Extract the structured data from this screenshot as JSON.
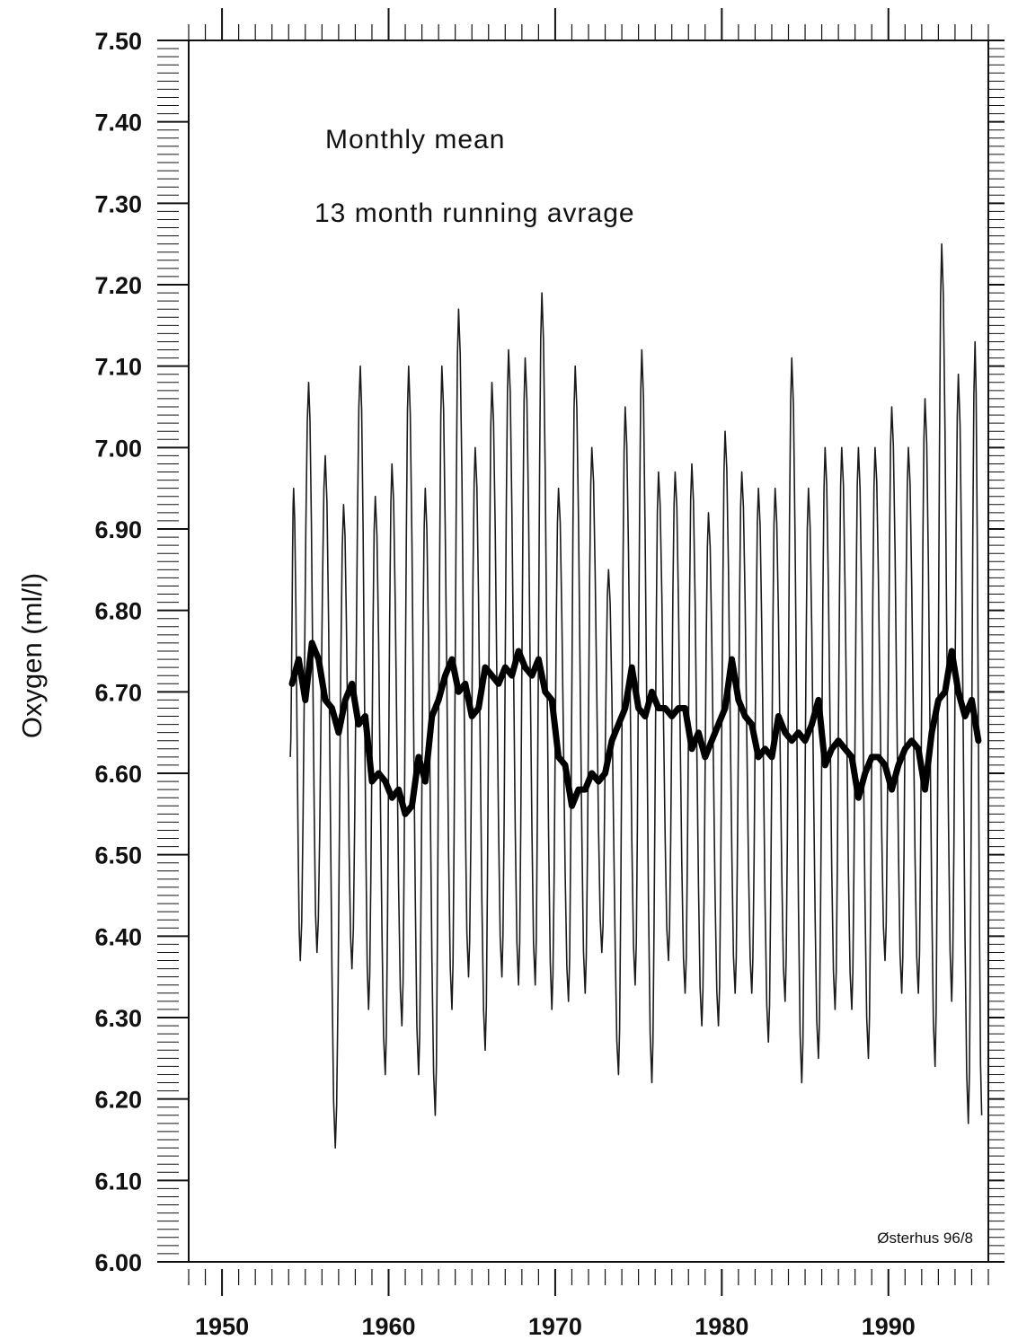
{
  "chart_data": {
    "type": "line",
    "title": "",
    "xlabel": "",
    "ylabel": "Oxygen (ml/l)",
    "xlim": [
      1948,
      1996
    ],
    "ylim": [
      6.0,
      7.5
    ],
    "x_ticks": [
      1950,
      1960,
      1970,
      1980,
      1990
    ],
    "x_tick_labels": [
      "1950",
      "1960",
      "1970",
      "1980",
      "1990"
    ],
    "y_ticks": [
      6.0,
      6.1,
      6.2,
      6.3,
      6.4,
      6.5,
      6.6,
      6.7,
      6.8,
      6.9,
      7.0,
      7.1,
      7.2,
      7.3,
      7.4,
      7.5
    ],
    "y_tick_labels": [
      "6.00",
      "6.10",
      "6.20",
      "6.30",
      "6.40",
      "6.50",
      "6.60",
      "6.70",
      "6.80",
      "6.90",
      "7.00",
      "7.10",
      "7.20",
      "7.30",
      "7.40",
      "7.50"
    ],
    "grid": false,
    "annotations": [
      "Monthly mean",
      "13 month running avrage"
    ],
    "credit": "Østerhus 96/8",
    "series": [
      {
        "name": "Monthly mean",
        "style": "thin",
        "peaks": {
          "x": [
            1954.3,
            1955.2,
            1956.2,
            1957.3,
            1958.3,
            1959.2,
            1960.2,
            1961.2,
            1962.2,
            1963.2,
            1964.2,
            1965.2,
            1966.2,
            1967.2,
            1968.2,
            1969.2,
            1970.2,
            1971.2,
            1972.2,
            1973.2,
            1974.2,
            1975.2,
            1976.2,
            1977.2,
            1978.2,
            1979.2,
            1980.2,
            1981.2,
            1982.2,
            1983.2,
            1984.2,
            1985.2,
            1986.2,
            1987.2,
            1988.2,
            1989.2,
            1990.2,
            1991.2,
            1992.2,
            1993.2,
            1994.2,
            1995.2
          ],
          "y": [
            6.95,
            7.08,
            6.99,
            6.93,
            7.1,
            6.94,
            6.98,
            7.1,
            6.95,
            7.1,
            7.17,
            7.0,
            7.08,
            7.12,
            7.11,
            7.19,
            6.95,
            7.1,
            7.0,
            6.85,
            7.05,
            7.12,
            6.97,
            6.97,
            6.98,
            6.92,
            7.02,
            6.97,
            6.95,
            6.95,
            7.11,
            6.95,
            7.0,
            7.0,
            7.0,
            7.0,
            7.05,
            7.0,
            7.06,
            7.25,
            7.09,
            7.13
          ]
        },
        "troughs": {
          "x": [
            1954.7,
            1955.7,
            1956.8,
            1957.8,
            1958.8,
            1959.8,
            1960.8,
            1961.8,
            1962.8,
            1963.8,
            1964.8,
            1965.8,
            1966.8,
            1967.8,
            1968.8,
            1969.8,
            1970.8,
            1971.8,
            1972.8,
            1973.8,
            1974.8,
            1975.8,
            1976.8,
            1977.8,
            1978.8,
            1979.8,
            1980.8,
            1981.8,
            1982.8,
            1983.8,
            1984.8,
            1985.8,
            1986.8,
            1987.8,
            1988.8,
            1989.8,
            1990.8,
            1991.8,
            1992.8,
            1993.8,
            1994.8,
            1995.6
          ],
          "y": [
            6.37,
            6.38,
            6.14,
            6.36,
            6.31,
            6.23,
            6.29,
            6.23,
            6.18,
            6.31,
            6.35,
            6.26,
            6.35,
            6.34,
            6.34,
            6.31,
            6.32,
            6.33,
            6.38,
            6.23,
            6.34,
            6.22,
            6.37,
            6.33,
            6.29,
            6.29,
            6.33,
            6.33,
            6.27,
            6.32,
            6.22,
            6.25,
            6.31,
            6.31,
            6.25,
            6.37,
            6.33,
            6.33,
            6.24,
            6.32,
            6.17,
            6.18
          ]
        }
      },
      {
        "name": "13 month running avrage",
        "style": "thick",
        "x": [
          1954.2,
          1954.6,
          1955.0,
          1955.4,
          1955.8,
          1956.2,
          1956.6,
          1957.0,
          1957.4,
          1957.8,
          1958.2,
          1958.6,
          1959.0,
          1959.4,
          1959.8,
          1960.2,
          1960.6,
          1961.0,
          1961.4,
          1961.8,
          1962.2,
          1962.6,
          1963.0,
          1963.4,
          1963.8,
          1964.2,
          1964.6,
          1965.0,
          1965.4,
          1965.8,
          1966.2,
          1966.6,
          1967.0,
          1967.4,
          1967.8,
          1968.2,
          1968.6,
          1969.0,
          1969.4,
          1969.8,
          1970.2,
          1970.6,
          1971.0,
          1971.4,
          1971.8,
          1972.2,
          1972.6,
          1973.0,
          1973.4,
          1973.8,
          1974.2,
          1974.6,
          1975.0,
          1975.4,
          1975.8,
          1976.2,
          1976.6,
          1977.0,
          1977.4,
          1977.8,
          1978.2,
          1978.6,
          1979.0,
          1979.4,
          1979.8,
          1980.2,
          1980.6,
          1981.0,
          1981.4,
          1981.8,
          1982.2,
          1982.6,
          1983.0,
          1983.4,
          1983.8,
          1984.2,
          1984.6,
          1985.0,
          1985.4,
          1985.8,
          1986.2,
          1986.6,
          1987.0,
          1987.4,
          1987.8,
          1988.2,
          1988.6,
          1989.0,
          1989.4,
          1989.8,
          1990.2,
          1990.6,
          1991.0,
          1991.4,
          1991.8,
          1992.2,
          1992.6,
          1993.0,
          1993.4,
          1993.8,
          1994.2,
          1994.6,
          1995.0,
          1995.4
        ],
        "y": [
          6.71,
          6.74,
          6.69,
          6.76,
          6.74,
          6.69,
          6.68,
          6.65,
          6.69,
          6.71,
          6.66,
          6.67,
          6.59,
          6.6,
          6.59,
          6.57,
          6.58,
          6.55,
          6.56,
          6.62,
          6.59,
          6.67,
          6.69,
          6.72,
          6.74,
          6.7,
          6.71,
          6.67,
          6.68,
          6.73,
          6.72,
          6.71,
          6.73,
          6.72,
          6.75,
          6.73,
          6.72,
          6.74,
          6.7,
          6.69,
          6.62,
          6.61,
          6.56,
          6.58,
          6.58,
          6.6,
          6.59,
          6.6,
          6.64,
          6.66,
          6.68,
          6.73,
          6.68,
          6.67,
          6.7,
          6.68,
          6.68,
          6.67,
          6.68,
          6.68,
          6.63,
          6.65,
          6.62,
          6.64,
          6.66,
          6.68,
          6.74,
          6.69,
          6.67,
          6.66,
          6.62,
          6.63,
          6.62,
          6.67,
          6.65,
          6.64,
          6.65,
          6.64,
          6.66,
          6.69,
          6.61,
          6.63,
          6.64,
          6.63,
          6.62,
          6.57,
          6.6,
          6.62,
          6.62,
          6.61,
          6.58,
          6.61,
          6.63,
          6.64,
          6.63,
          6.58,
          6.65,
          6.69,
          6.7,
          6.75,
          6.7,
          6.67,
          6.69,
          6.64
        ]
      }
    ]
  }
}
